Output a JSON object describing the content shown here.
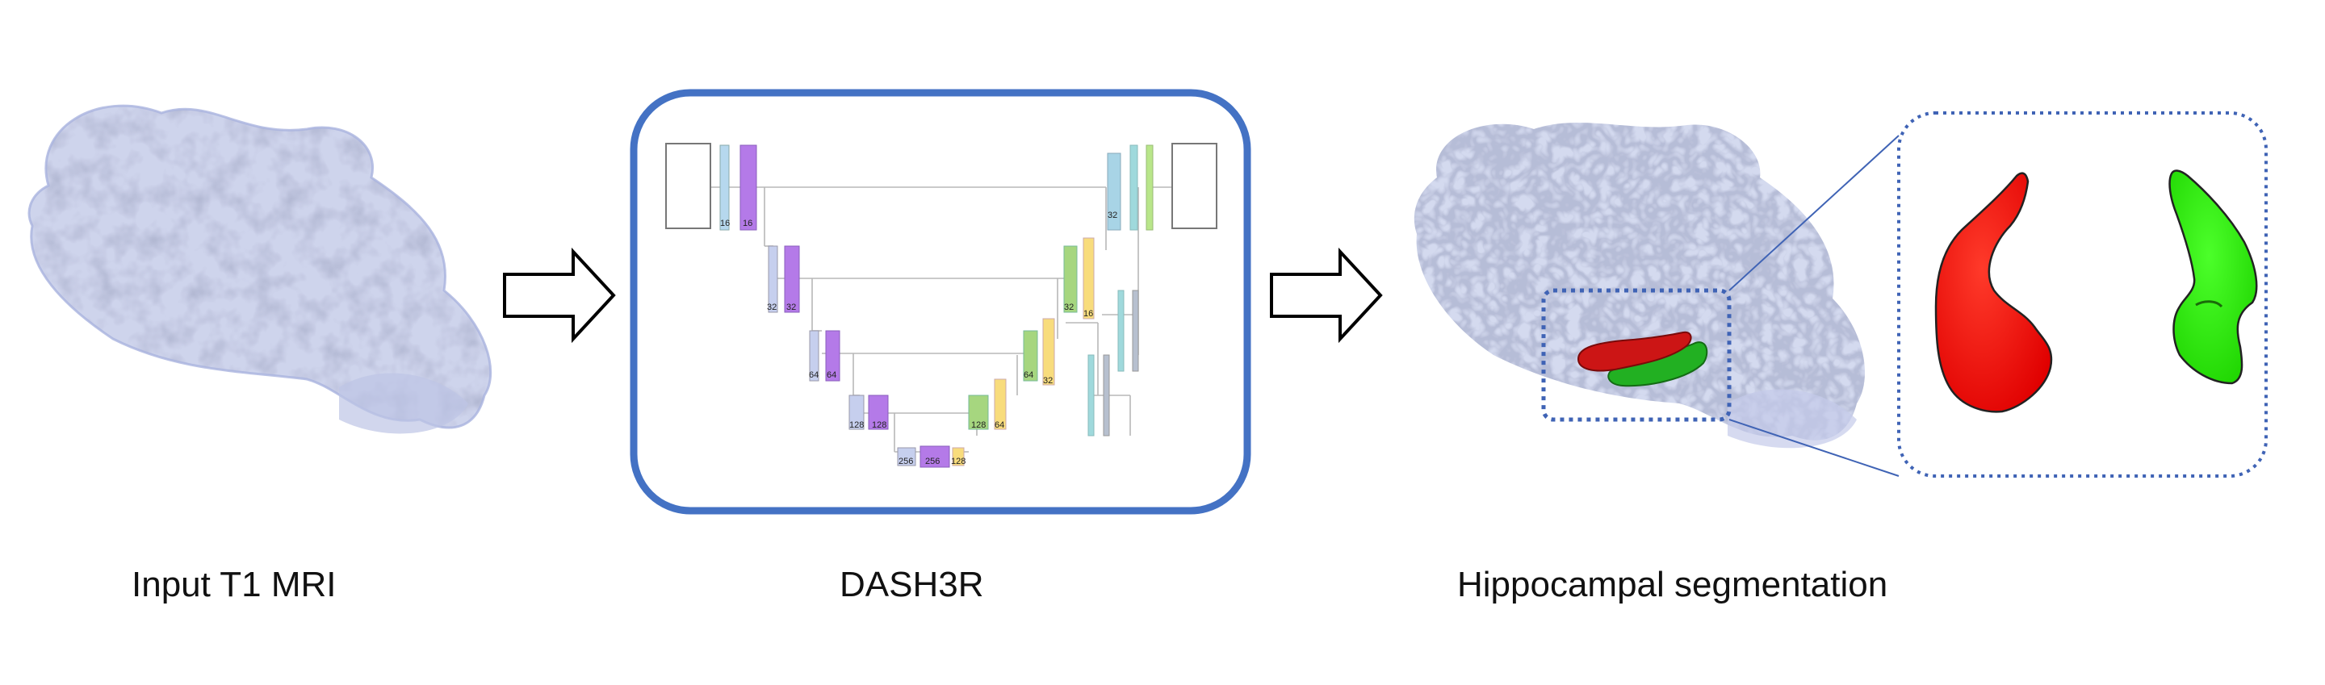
{
  "captions": {
    "input": "Input T1 MRI",
    "model": "DASH3R",
    "output": "Hippocampal segmentation"
  },
  "network": {
    "encoder_labels": [
      [
        "16",
        "16"
      ],
      [
        "32",
        "32"
      ],
      [
        "64",
        "64"
      ],
      [
        "128",
        "128"
      ],
      [
        "256",
        "256"
      ]
    ],
    "decoder_labels": [
      [
        "128",
        "128"
      ],
      [
        "64",
        "64"
      ],
      [
        "32",
        "32"
      ],
      [
        "32",
        "16"
      ],
      [
        "32"
      ]
    ],
    "colors": {
      "conv_blue": "#a8d4e6",
      "conv_purple": "#b47ae8",
      "conv_green": "#a6d67f",
      "conv_yellow": "#f8dc7c",
      "skip_teal": "#9fd9dc",
      "frame_blue": "#4472c4"
    }
  },
  "segmentation": {
    "left_color": "#ff0000",
    "right_color": "#22dd00",
    "dark_green": "#1f9a22",
    "dark_red": "#cc1111"
  }
}
